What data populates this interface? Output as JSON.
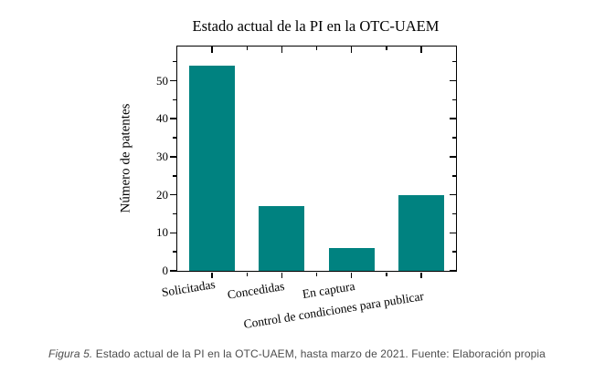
{
  "caption": {
    "label": "Figura 5.",
    "text": "Estado actual de la PI en la OTC-UAEM, hasta marzo de 2021. Fuente: Elaboración propia"
  },
  "chart_data": {
    "type": "bar",
    "title": "Estado actual de la PI en la OTC-UAEM",
    "categories": [
      "Solicitadas",
      "Concedidas",
      "En captura",
      "Control de condiciones para publicar"
    ],
    "values": [
      54,
      17,
      6,
      20
    ],
    "xlabel": "",
    "ylabel": "Número de patentes",
    "ylim": [
      0,
      59
    ],
    "yticks_major": [
      0,
      10,
      20,
      30,
      40,
      50
    ],
    "ytick_minor_step": 5,
    "ytick_minor_max": 55,
    "grid": false,
    "legend": null,
    "bar_color": "#008280",
    "axis_color": "#000000"
  }
}
